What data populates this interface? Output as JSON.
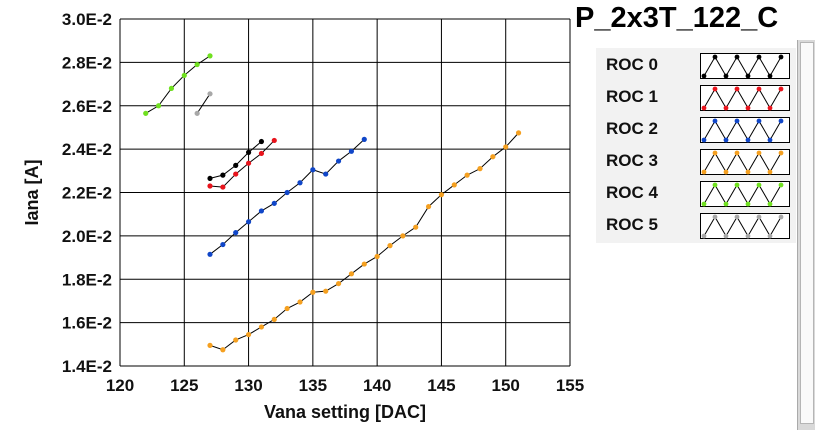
{
  "chart_data": {
    "type": "line",
    "title": "",
    "xlabel": "Vana setting [DAC]",
    "ylabel": "Iana [A]",
    "xlim": [
      120,
      155
    ],
    "ylim": [
      0.014,
      0.03
    ],
    "x_ticks": [
      120,
      125,
      130,
      135,
      140,
      145,
      150,
      155
    ],
    "y_ticks": [
      0.014,
      0.016,
      0.018,
      0.02,
      0.022,
      0.024,
      0.026,
      0.028,
      0.03
    ],
    "y_tick_labels": [
      "1.4E-2",
      "1.6E-2",
      "1.8E-2",
      "2.0E-2",
      "2.2E-2",
      "2.4E-2",
      "2.6E-2",
      "2.8E-2",
      "3.0E-2"
    ],
    "grid": true,
    "legend_position": "right",
    "series": [
      {
        "name": "ROC 0",
        "color": "#000000",
        "x": [
          127,
          128,
          129,
          130,
          131
        ],
        "y": [
          0.02265,
          0.0228,
          0.02325,
          0.02385,
          0.02435
        ]
      },
      {
        "name": "ROC 1",
        "color": "#e8141c",
        "x": [
          127,
          128,
          129,
          130,
          131,
          132
        ],
        "y": [
          0.0223,
          0.02225,
          0.02285,
          0.02335,
          0.0238,
          0.0244
        ]
      },
      {
        "name": "ROC 2",
        "color": "#1046c8",
        "x": [
          127,
          128,
          129,
          130,
          131,
          132,
          133,
          134,
          135,
          136,
          137,
          138,
          139
        ],
        "y": [
          0.01915,
          0.0196,
          0.02015,
          0.02065,
          0.02115,
          0.0215,
          0.022,
          0.02245,
          0.02305,
          0.02285,
          0.02345,
          0.0239,
          0.02445
        ]
      },
      {
        "name": "ROC 3",
        "color": "#f5a020",
        "x": [
          127,
          128,
          129,
          130,
          131,
          132,
          133,
          134,
          135,
          136,
          137,
          138,
          139,
          140,
          141,
          142,
          143,
          144,
          145,
          146,
          147,
          148,
          149,
          150,
          151
        ],
        "y": [
          0.01495,
          0.01475,
          0.0152,
          0.01545,
          0.0158,
          0.01615,
          0.01665,
          0.01695,
          0.0174,
          0.01745,
          0.0178,
          0.01825,
          0.0187,
          0.01905,
          0.01955,
          0.02,
          0.0204,
          0.02135,
          0.0219,
          0.02235,
          0.0228,
          0.0231,
          0.02365,
          0.0241,
          0.02475
        ]
      },
      {
        "name": "ROC 4",
        "color": "#70e020",
        "x": [
          122,
          123,
          124,
          125,
          126,
          127
        ],
        "y": [
          0.02565,
          0.026,
          0.0268,
          0.0274,
          0.0279,
          0.0283
        ]
      },
      {
        "name": "ROC 5",
        "color": "#a8a8a8",
        "x": [
          126,
          127
        ],
        "y": [
          0.02565,
          0.02655
        ]
      }
    ]
  },
  "legend": {
    "title": "P_2x3T_122_C",
    "items": [
      {
        "label": "ROC 0",
        "color": "#000000"
      },
      {
        "label": "ROC 1",
        "color": "#e8141c"
      },
      {
        "label": "ROC 2",
        "color": "#1046c8"
      },
      {
        "label": "ROC 3",
        "color": "#f5a020"
      },
      {
        "label": "ROC 4",
        "color": "#70e020"
      },
      {
        "label": "ROC 5",
        "color": "#a8a8a8"
      }
    ]
  }
}
